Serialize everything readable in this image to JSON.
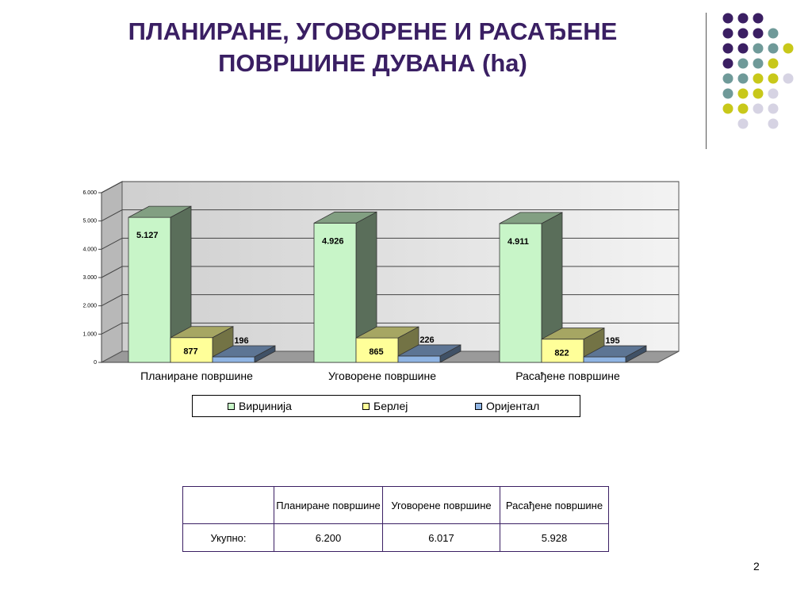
{
  "slide": {
    "title_line1": "ПЛАНИРАНЕ, УГОВОРЕНЕ И РАСАЂЕНЕ",
    "title_line2": "ПОВРШИНЕ ДУВАНА (ha)",
    "page_number": "2"
  },
  "decor": {
    "dot_colors": {
      "purple": "#3b1f63",
      "teal": "#6f9a99",
      "yellow": "#c8c81a",
      "lavender": "#d6d3e3"
    }
  },
  "chart_data": {
    "type": "bar",
    "style": "3d-clustered-column",
    "categories": [
      "Планиране површине",
      "Уговорене површине",
      "Расађене површине"
    ],
    "series": [
      {
        "name": "Вирџинија",
        "values": [
          5127,
          4926,
          4911
        ],
        "labels": [
          "5.127",
          "4.926",
          "4.911"
        ],
        "color": "#c8f5c8"
      },
      {
        "name": "Берлеј",
        "values": [
          877,
          865,
          822
        ],
        "labels": [
          "877",
          "865",
          "822"
        ],
        "color": "#ffff99"
      },
      {
        "name": "Оријентал",
        "values": [
          196,
          226,
          195
        ],
        "labels": [
          "196",
          "226",
          "195"
        ],
        "color": "#8fb4e3"
      }
    ],
    "ylim": [
      0,
      6000
    ],
    "yticks": [
      0,
      1000,
      2000,
      3000,
      4000,
      5000,
      6000
    ],
    "ytick_labels": [
      "0",
      "1.000",
      "2.000",
      "3.000",
      "4.000",
      "5.000",
      "6.000"
    ],
    "grid": true,
    "legend_position": "bottom"
  },
  "table": {
    "headers": [
      "",
      "Планиране површине",
      "Уговорене површине",
      "Расађене површине"
    ],
    "rows": [
      [
        "Укупно:",
        "6.200",
        "6.017",
        "5.928"
      ]
    ]
  }
}
